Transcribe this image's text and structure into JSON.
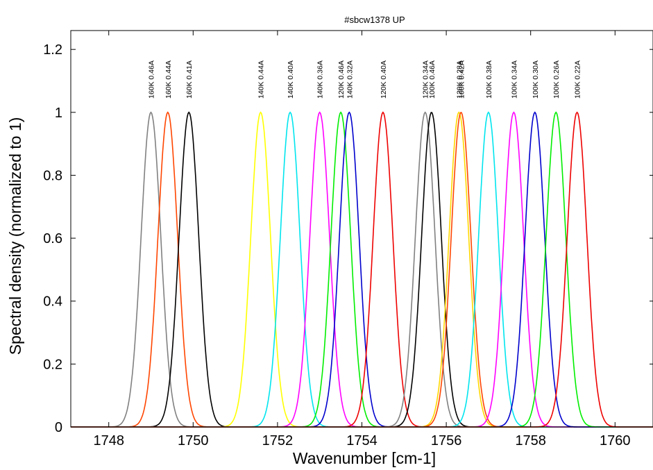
{
  "chart_data": {
    "type": "line",
    "title": "#sbcw1378 UP",
    "xlabel": "Wavenumber [cm-1]",
    "ylabel": "Spectral density (normalized to 1)",
    "xlim": [
      1747.1,
      1760.9
    ],
    "ylim": [
      0,
      1.26
    ],
    "xticks": [
      1748,
      1750,
      1752,
      1754,
      1756,
      1758,
      1760
    ],
    "xtick_labels": [
      "1748",
      "1750",
      "1752",
      "1754",
      "1756",
      "1758",
      "1760"
    ],
    "yticks": [
      0,
      0.2,
      0.4,
      0.6,
      0.8,
      1,
      1.2
    ],
    "ytick_labels": [
      "0",
      "0.2",
      "0.4",
      "0.6",
      "0.8",
      "1",
      "1.2"
    ],
    "grid": false,
    "peak_shape": "gaussian",
    "peak_fwhm": 0.55,
    "series": [
      {
        "name": "160K 0.46A",
        "center": 1749.0,
        "color": "#808080"
      },
      {
        "name": "160K 0.44A",
        "center": 1749.4,
        "color": "#ff4500"
      },
      {
        "name": "160K 0.41A",
        "center": 1749.9,
        "color": "#000000"
      },
      {
        "name": "140K 0.44A",
        "center": 1751.6,
        "color": "#ffff00"
      },
      {
        "name": "140K 0.40A",
        "center": 1752.3,
        "color": "#00e5ee"
      },
      {
        "name": "140K 0.36A",
        "center": 1753.0,
        "color": "#ff00ff"
      },
      {
        "name": "120K 0.46A",
        "center": 1753.5,
        "color": "#00ee00"
      },
      {
        "name": "140K 0.32A",
        "center": 1753.7,
        "color": "#0000cd"
      },
      {
        "name": "120K 0.40A",
        "center": 1754.5,
        "color": "#ee0000"
      },
      {
        "name": "120K 0.34A",
        "center": 1755.5,
        "color": "#808080"
      },
      {
        "name": "100K 0.46A",
        "center": 1755.65,
        "color": "#000000"
      },
      {
        "name": "120K 0.28A",
        "center": 1756.3,
        "color": "#ffd700"
      },
      {
        "name": "100K 0.42A",
        "center": 1756.35,
        "color": "#ff4500"
      },
      {
        "name": "100K 0.38A",
        "center": 1757.0,
        "color": "#00e5ee"
      },
      {
        "name": "100K 0.34A",
        "center": 1757.6,
        "color": "#ff00ff"
      },
      {
        "name": "100K 0.30A",
        "center": 1758.1,
        "color": "#0000cd"
      },
      {
        "name": "100K 0.26A",
        "center": 1758.6,
        "color": "#00ee00"
      },
      {
        "name": "100K 0.22A",
        "center": 1759.1,
        "color": "#ee0000"
      }
    ]
  }
}
